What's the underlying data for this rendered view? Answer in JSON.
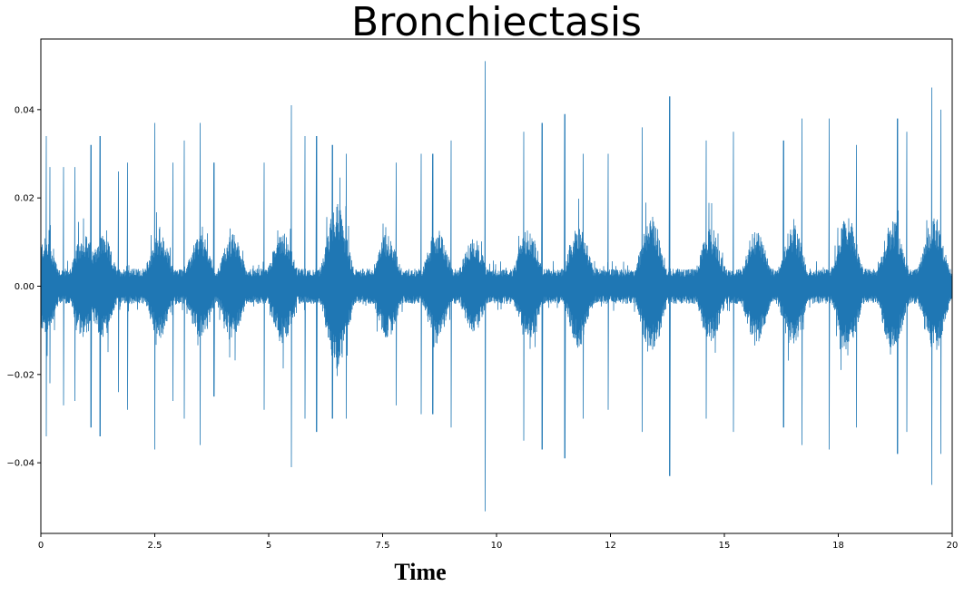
{
  "chart_data": {
    "type": "line",
    "title": "Bronchiectasis",
    "xlabel": "Time",
    "ylabel": "",
    "xlim": [
      0,
      20
    ],
    "ylim": [
      -0.056,
      0.056
    ],
    "grid": false,
    "legend": "none",
    "x_ticks": [
      {
        "value": 0,
        "label": "0"
      },
      {
        "value": 2.5,
        "label": "2.5"
      },
      {
        "value": 5,
        "label": "5"
      },
      {
        "value": 7.5,
        "label": "7.5"
      },
      {
        "value": 10,
        "label": "10"
      },
      {
        "value": 12.5,
        "label": "12"
      },
      {
        "value": 15,
        "label": "15"
      },
      {
        "value": 17.5,
        "label": "18"
      },
      {
        "value": 20,
        "label": "20"
      }
    ],
    "y_ticks": [
      {
        "value": 0.04,
        "label": "0.04"
      },
      {
        "value": 0.02,
        "label": "0.02"
      },
      {
        "value": 0.0,
        "label": "0.00"
      },
      {
        "value": -0.02,
        "label": "−0.02"
      },
      {
        "value": -0.04,
        "label": "−0.04"
      }
    ],
    "series": [
      {
        "color": "#1f77b4",
        "baseline_amplitude": 0.004,
        "bursts": [
          {
            "t": 0.1,
            "amp": 0.011
          },
          {
            "t": 0.95,
            "amp": 0.012
          },
          {
            "t": 1.35,
            "amp": 0.012
          },
          {
            "t": 2.6,
            "amp": 0.012
          },
          {
            "t": 3.5,
            "amp": 0.012
          },
          {
            "t": 4.2,
            "amp": 0.012
          },
          {
            "t": 5.3,
            "amp": 0.013
          },
          {
            "t": 6.5,
            "amp": 0.019
          },
          {
            "t": 7.6,
            "amp": 0.012
          },
          {
            "t": 8.7,
            "amp": 0.013
          },
          {
            "t": 9.5,
            "amp": 0.011
          },
          {
            "t": 10.7,
            "amp": 0.013
          },
          {
            "t": 11.8,
            "amp": 0.014
          },
          {
            "t": 13.4,
            "amp": 0.016
          },
          {
            "t": 14.7,
            "amp": 0.013
          },
          {
            "t": 15.7,
            "amp": 0.013
          },
          {
            "t": 16.5,
            "amp": 0.014
          },
          {
            "t": 17.7,
            "amp": 0.016
          },
          {
            "t": 18.7,
            "amp": 0.015
          },
          {
            "t": 19.6,
            "amp": 0.016
          }
        ],
        "spikes": [
          {
            "t": 0.12,
            "max": 0.034,
            "min": -0.034
          },
          {
            "t": 0.2,
            "max": 0.027,
            "min": -0.022
          },
          {
            "t": 0.5,
            "max": 0.027,
            "min": -0.027
          },
          {
            "t": 0.75,
            "max": 0.027,
            "min": -0.026
          },
          {
            "t": 1.1,
            "max": 0.032,
            "min": -0.032
          },
          {
            "t": 1.3,
            "max": 0.034,
            "min": -0.034
          },
          {
            "t": 1.7,
            "max": 0.026,
            "min": -0.024
          },
          {
            "t": 1.9,
            "max": 0.028,
            "min": -0.028
          },
          {
            "t": 2.5,
            "max": 0.037,
            "min": -0.037
          },
          {
            "t": 2.9,
            "max": 0.028,
            "min": -0.026
          },
          {
            "t": 3.15,
            "max": 0.033,
            "min": -0.03
          },
          {
            "t": 3.5,
            "max": 0.037,
            "min": -0.036
          },
          {
            "t": 3.8,
            "max": 0.028,
            "min": -0.025
          },
          {
            "t": 4.9,
            "max": 0.028,
            "min": -0.028
          },
          {
            "t": 5.5,
            "max": 0.041,
            "min": -0.041
          },
          {
            "t": 5.8,
            "max": 0.034,
            "min": -0.03
          },
          {
            "t": 6.05,
            "max": 0.034,
            "min": -0.033
          },
          {
            "t": 6.4,
            "max": 0.032,
            "min": -0.03
          },
          {
            "t": 6.7,
            "max": 0.03,
            "min": -0.03
          },
          {
            "t": 7.8,
            "max": 0.028,
            "min": -0.027
          },
          {
            "t": 8.35,
            "max": 0.03,
            "min": -0.029
          },
          {
            "t": 8.6,
            "max": 0.03,
            "min": -0.029
          },
          {
            "t": 9.0,
            "max": 0.033,
            "min": -0.032
          },
          {
            "t": 9.75,
            "max": 0.051,
            "min": -0.051
          },
          {
            "t": 10.6,
            "max": 0.035,
            "min": -0.035
          },
          {
            "t": 11.0,
            "max": 0.037,
            "min": -0.037
          },
          {
            "t": 11.5,
            "max": 0.039,
            "min": -0.039
          },
          {
            "t": 11.9,
            "max": 0.03,
            "min": -0.03
          },
          {
            "t": 12.45,
            "max": 0.03,
            "min": -0.028
          },
          {
            "t": 13.2,
            "max": 0.036,
            "min": -0.033
          },
          {
            "t": 13.8,
            "max": 0.043,
            "min": -0.043
          },
          {
            "t": 14.6,
            "max": 0.033,
            "min": -0.03
          },
          {
            "t": 15.2,
            "max": 0.035,
            "min": -0.033
          },
          {
            "t": 16.3,
            "max": 0.033,
            "min": -0.032
          },
          {
            "t": 16.7,
            "max": 0.038,
            "min": -0.036
          },
          {
            "t": 17.3,
            "max": 0.038,
            "min": -0.037
          },
          {
            "t": 17.9,
            "max": 0.032,
            "min": -0.032
          },
          {
            "t": 18.8,
            "max": 0.038,
            "min": -0.038
          },
          {
            "t": 19.0,
            "max": 0.035,
            "min": -0.033
          },
          {
            "t": 19.55,
            "max": 0.045,
            "min": -0.045
          },
          {
            "t": 19.75,
            "max": 0.04,
            "min": -0.038
          }
        ]
      }
    ]
  }
}
